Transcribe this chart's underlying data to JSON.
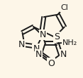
{
  "background_color": "#fdf6e8",
  "bond_color": "#1a1a1a",
  "bond_width": 1.4,
  "font_size": 9,
  "font_size_small": 8,
  "figsize": [
    1.17,
    1.11
  ],
  "dpi": 100,
  "xlim": [
    0,
    117
  ],
  "ylim": [
    0,
    111
  ]
}
